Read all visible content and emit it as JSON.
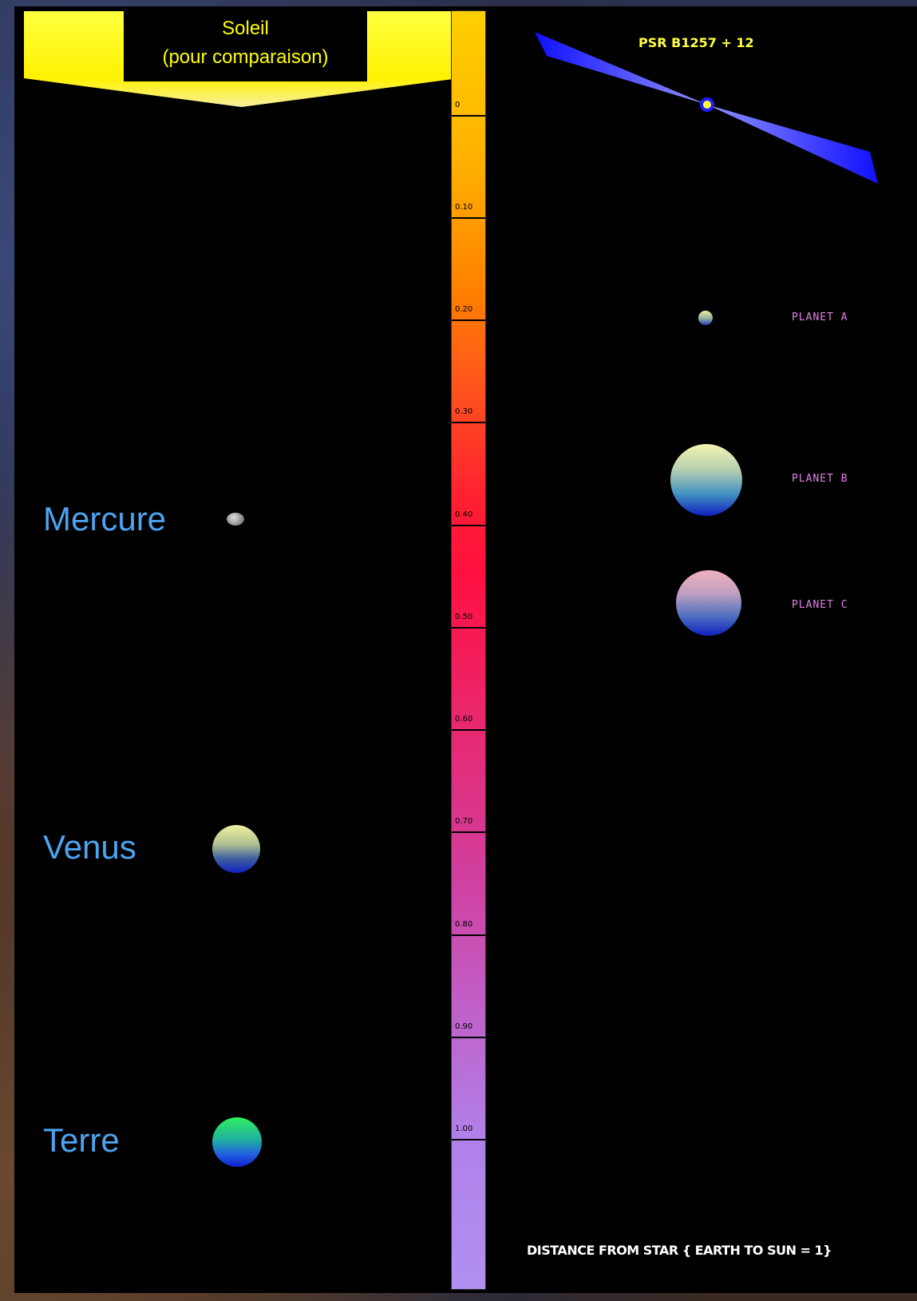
{
  "sun": {
    "label_line1": "Soleil",
    "label_line2": "(pour comparaison)",
    "color": "#ffff00"
  },
  "solar_system": {
    "mercury": "Mercure",
    "venus": "Venus",
    "earth": "Terre"
  },
  "scale": {
    "ticks": [
      "0",
      "0.10",
      "0.20",
      "0.30",
      "0.40",
      "0.50",
      "0.60",
      "0.70",
      "0.80",
      "0.90",
      "1.00"
    ]
  },
  "pulsar": {
    "name": "PSR B1257 + 12",
    "planets": {
      "a": "PLANET  A",
      "b": "PLANET  B",
      "c": "PLANET  C"
    }
  },
  "distance_label": "DISTANCE FROM STAR { EARTH TO SUN = 1}",
  "colors": {
    "label_blue": "#4da3f0",
    "planet_label_pink": "#e080e8",
    "pulsar_label_yellow": "#ffff40"
  }
}
